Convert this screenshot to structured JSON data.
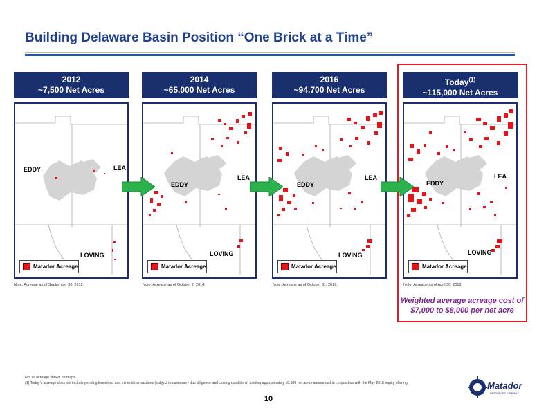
{
  "slide": {
    "title": "Building Delaware Basin Position “One Brick at a Time”",
    "page_number": "10",
    "callout": "Weighted average acreage cost of $7,000 to $8,000 per net acre",
    "footnotes": {
      "line1": "Not all acreage shown on maps.",
      "line2": "(1)    Today’s acreage does not include pending leasehold and mineral transactions (subject to customary due diligence and closing conditions) totaling approximately 10,600 net acres announced in conjunction with the May 2018 equity offering."
    },
    "logo_text": "Matador",
    "logo_subtext": "RESOURCES COMPANY"
  },
  "panels": [
    {
      "year": "2012",
      "acres": "~7,500 Net Acres",
      "note": "Note: Acreage as of September 30, 2012.",
      "counties": {
        "eddy": "EDDY",
        "lea": "LEA",
        "loving": "LOVING"
      },
      "legend": "Matador Acreage"
    },
    {
      "year": "2014",
      "acres": "~65,000 Net Acres",
      "note": "Note: Acreage as of October 2, 2014.",
      "counties": {
        "eddy": "EDDY",
        "lea": "LEA",
        "loving": "LOVING"
      },
      "legend": "Matador Acreage"
    },
    {
      "year": "2016",
      "acres": "~94,700 Net Acres",
      "note": "Note: Acreage as of October 31, 2016.",
      "counties": {
        "eddy": "EDDY",
        "lea": "LEA",
        "loving": "LOVING"
      },
      "legend": "Matador Acreage"
    },
    {
      "year": "Today",
      "year_sup": "(1)",
      "acres": "~115,000 Net Acres",
      "note": "Note: Acreage as of April 30, 2018.",
      "counties": {
        "eddy": "EDDY",
        "lea": "LEA",
        "loving": "LOVING"
      },
      "legend": "Matador Acreage"
    }
  ],
  "colors": {
    "navy": "#1a2f6e",
    "title_blue": "#1f3f8f",
    "acreage_red": "#e3151a",
    "arrow_green": "#2bb24c",
    "callout_purple": "#7a2b8f",
    "highlight_red": "#e31b23"
  }
}
